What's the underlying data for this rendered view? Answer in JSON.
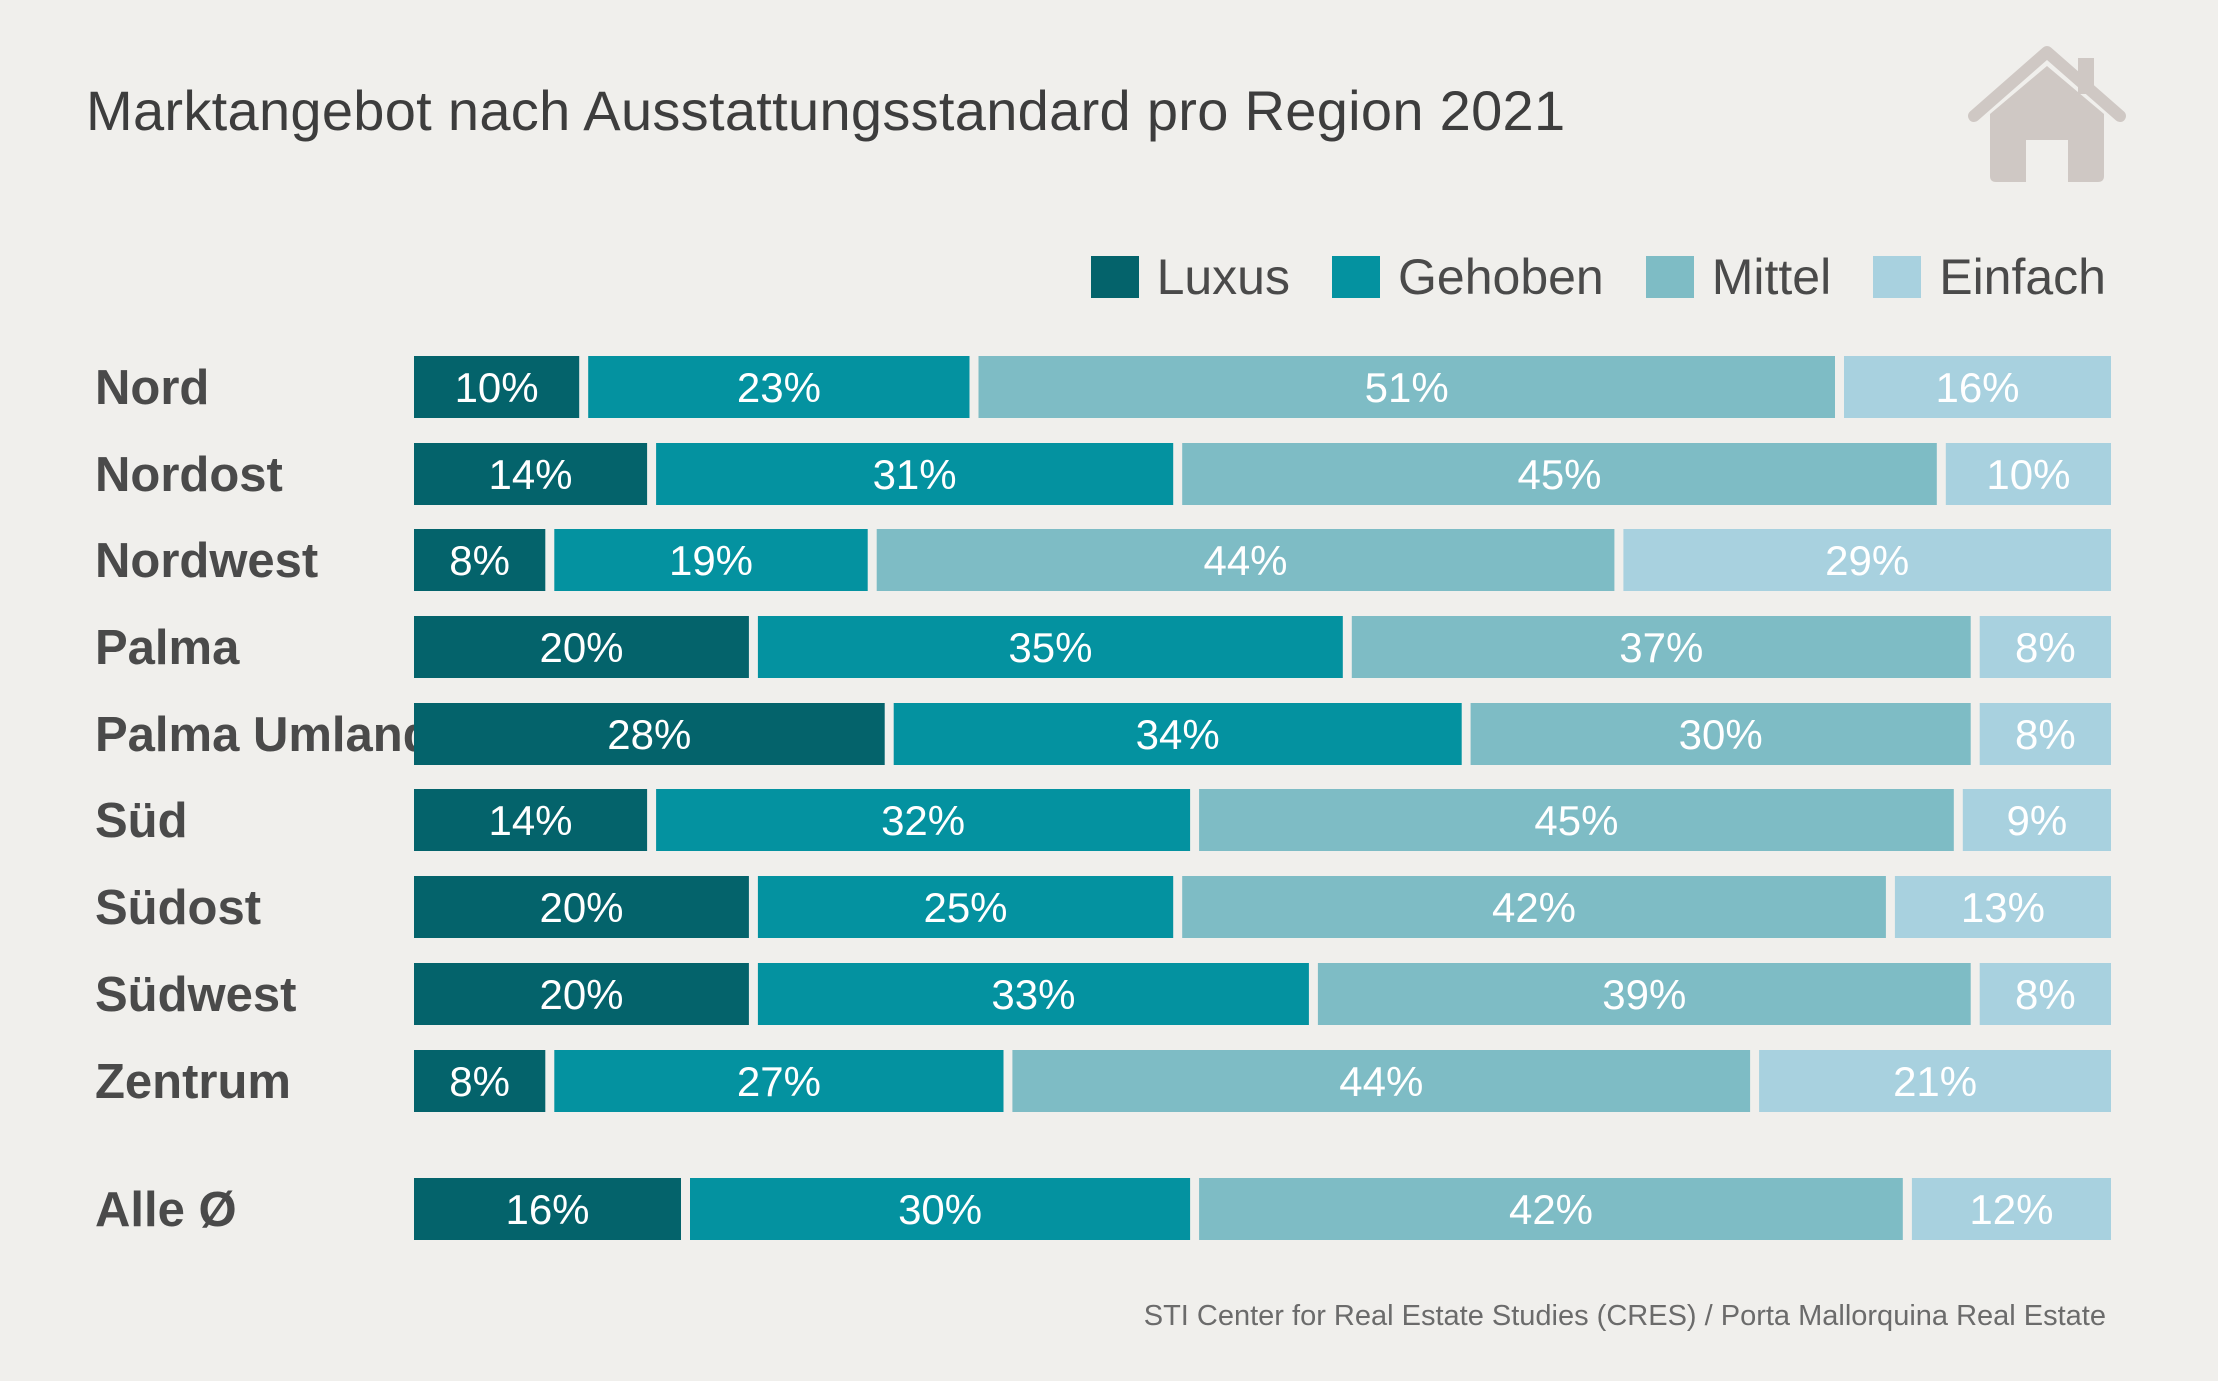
{
  "title": "Marktangebot nach Ausstattungsstandard pro Region 2021",
  "icon": "house-icon",
  "source": "STI Center for Real Estate Studies (CRES) / Porta Mallorquina Real Estate",
  "colors": {
    "Luxus": "#04636b",
    "Gehoben": "#0492a0",
    "Mittel": "#7ebcc5",
    "Einfach": "#a8d1df",
    "background": "#f0efec",
    "icon": "#cfc8c4"
  },
  "chart_data": {
    "type": "bar",
    "orientation": "horizontal",
    "stacked": "percent",
    "title": "Marktangebot nach Ausstattungsstandard pro Region 2021",
    "legend_position": "top-right",
    "categories": [
      "Nord",
      "Nordost",
      "Nordwest",
      "Palma",
      "Palma Umland",
      "Süd",
      "Südost",
      "Südwest",
      "Zentrum",
      "Alle Ø"
    ],
    "series": [
      {
        "name": "Luxus",
        "values": [
          10,
          14,
          8,
          20,
          28,
          14,
          20,
          20,
          8,
          16
        ]
      },
      {
        "name": "Gehoben",
        "values": [
          23,
          31,
          19,
          35,
          34,
          32,
          25,
          33,
          27,
          30
        ]
      },
      {
        "name": "Mittel",
        "values": [
          51,
          45,
          44,
          37,
          30,
          45,
          42,
          39,
          44,
          42
        ]
      },
      {
        "name": "Einfach",
        "values": [
          16,
          10,
          29,
          8,
          8,
          9,
          13,
          8,
          21,
          12
        ]
      }
    ],
    "value_suffix": "%"
  }
}
